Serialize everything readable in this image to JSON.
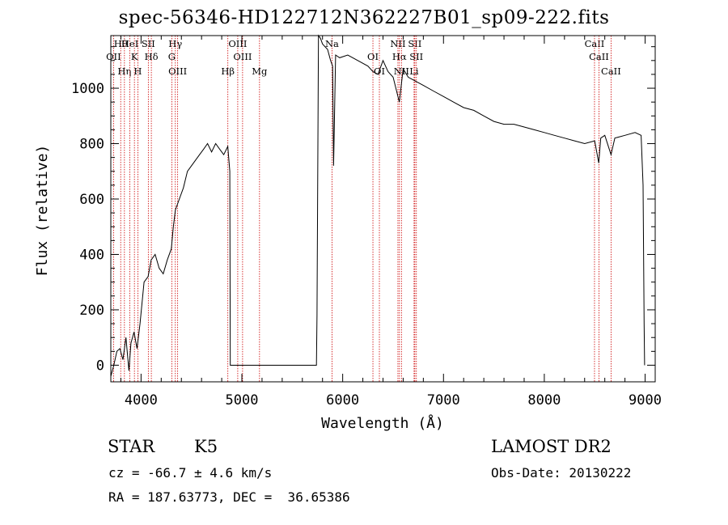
{
  "chart_data": {
    "type": "line",
    "title": "spec-56346-HD122712N362227B01_sp09-222.fits",
    "xlabel": "Wavelength (Å)",
    "ylabel": "Flux (relative)",
    "xlim": [
      3700,
      9100
    ],
    "ylim": [
      -60,
      1190
    ],
    "x_ticks": [
      4000,
      5000,
      6000,
      7000,
      8000,
      9000
    ],
    "y_ticks": [
      0,
      200,
      400,
      600,
      800,
      1000
    ],
    "grid": false,
    "series": [
      {
        "x": [
          3700,
          3730,
          3760,
          3790,
          3820,
          3850,
          3880,
          3900,
          3930,
          3960,
          3990,
          4030,
          4070,
          4100,
          4140,
          4180,
          4220,
          4260,
          4300,
          4320,
          4340,
          4380,
          4420,
          4460,
          4500,
          4540,
          4580,
          4620,
          4660,
          4700,
          4740,
          4780,
          4820,
          4860,
          4880,
          4885,
          5740,
          5745,
          5760,
          5780,
          5800,
          5850,
          5880,
          5900,
          5910,
          5930,
          5970,
          6050,
          6150,
          6250,
          6300,
          6350,
          6400,
          6450,
          6500,
          6562,
          6600,
          6650,
          6700,
          6800,
          6900,
          7000,
          7100,
          7200,
          7300,
          7400,
          7500,
          7600,
          7700,
          7800,
          7900,
          8000,
          8100,
          8200,
          8300,
          8400,
          8500,
          8540,
          8560,
          8600,
          8662,
          8700,
          8800,
          8900,
          8960,
          8980,
          8990,
          8995
        ],
        "y": [
          -40,
          0,
          50,
          60,
          20,
          100,
          -20,
          80,
          120,
          60,
          150,
          300,
          320,
          380,
          400,
          350,
          330,
          380,
          420,
          500,
          560,
          600,
          640,
          700,
          720,
          740,
          760,
          780,
          800,
          770,
          800,
          780,
          760,
          790,
          700,
          0,
          0,
          180,
          1190,
          1180,
          1160,
          1140,
          1100,
          1080,
          720,
          1120,
          1110,
          1120,
          1100,
          1080,
          1060,
          1050,
          1100,
          1060,
          1040,
          950,
          1070,
          1040,
          1030,
          1010,
          990,
          970,
          950,
          930,
          920,
          900,
          880,
          870,
          870,
          860,
          850,
          840,
          830,
          820,
          810,
          800,
          810,
          730,
          820,
          830,
          760,
          820,
          830,
          840,
          830,
          650,
          150,
          0
        ]
      }
    ],
    "lines": [
      {
        "label": "Hθ",
        "x": 3798
      },
      {
        "label": "OII",
        "x": 3727
      },
      {
        "label": "Hη",
        "x": 3835
      },
      {
        "label": "HeI",
        "x": 3889
      },
      {
        "label": "K",
        "x": 3934
      },
      {
        "label": "H",
        "x": 3968
      },
      {
        "label": "SII",
        "x": 4072
      },
      {
        "label": "Hδ",
        "x": 4102
      },
      {
        "label": "OIII",
        "x": 4363
      },
      {
        "label": "Hγ",
        "x": 4340
      },
      {
        "label": "G",
        "x": 4305
      },
      {
        "label": "Hβ",
        "x": 4861
      },
      {
        "label": "OIII",
        "x": 4959
      },
      {
        "label": "OIII",
        "x": 5007
      },
      {
        "label": "Mg",
        "x": 5175
      },
      {
        "label": "Na",
        "x": 5894
      },
      {
        "label": "OI",
        "x": 6300
      },
      {
        "label": "OI",
        "x": 6364
      },
      {
        "label": "NII",
        "x": 6548
      },
      {
        "label": "Hα",
        "x": 6563
      },
      {
        "label": "NII",
        "x": 6583
      },
      {
        "label": "SII",
        "x": 6716
      },
      {
        "label": "SII",
        "x": 6731
      },
      {
        "label": "Li",
        "x": 6708
      },
      {
        "label": "CaII",
        "x": 8498
      },
      {
        "label": "CaII",
        "x": 8542
      },
      {
        "label": "CaII",
        "x": 8662
      }
    ]
  },
  "info": {
    "class": "STAR",
    "subclass": "K5",
    "survey": "LAMOST DR2",
    "cz": "cz = -66.7 ± 4.6 km/s",
    "obs_date": "Obs-Date: 20130222",
    "radec": "RA = 187.63773, DEC =  36.65386"
  },
  "colors": {
    "spectrum": "#000000",
    "lines": "#cc0000",
    "axes": "#000000"
  }
}
